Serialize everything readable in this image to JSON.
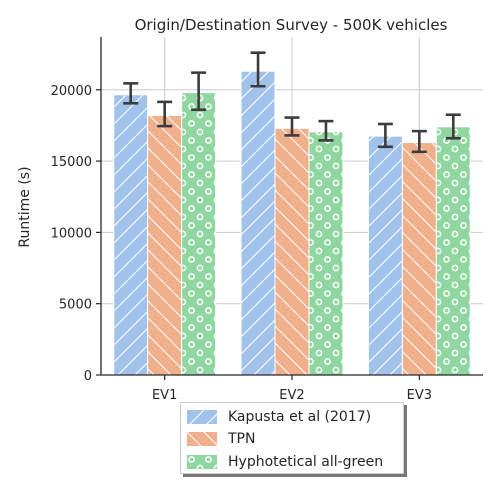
{
  "chart_data": {
    "type": "bar",
    "title": "Origin/Destination Survey - 500K vehicles",
    "xlabel": "",
    "ylabel": "Runtime (s)",
    "ylim": [
      0,
      23700
    ],
    "yticks": [
      0,
      5000,
      10000,
      15000,
      20000
    ],
    "grid": true,
    "legend_position": "bottom",
    "categories": [
      "EV1",
      "EV2",
      "EV3"
    ],
    "series": [
      {
        "name": "Kapusta et al (2017)",
        "values": [
          19650,
          21300,
          16750
        ],
        "err_low": [
          19050,
          20250,
          16000
        ],
        "err_high": [
          20450,
          22600,
          17600
        ],
        "color": "#a1c3eb",
        "hatch": "diagonal-forward"
      },
      {
        "name": "TPN",
        "values": [
          18200,
          17300,
          16300
        ],
        "err_low": [
          17450,
          16800,
          15650
        ],
        "err_high": [
          19150,
          18050,
          17100
        ],
        "color": "#f0b08c",
        "hatch": "diagonal-back"
      },
      {
        "name": "Hyphotetical all-green",
        "values": [
          19800,
          17050,
          17400
        ],
        "err_low": [
          18600,
          16450,
          16600
        ],
        "err_high": [
          21200,
          17800,
          18250
        ],
        "color": "#8fd6a0",
        "hatch": "circles"
      }
    ]
  }
}
